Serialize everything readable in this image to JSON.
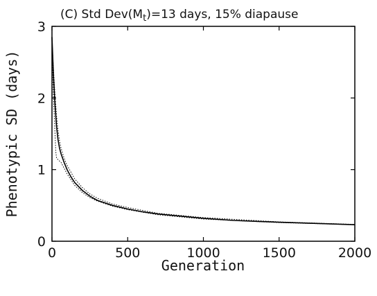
{
  "chart_data": {
    "type": "line",
    "title": "(C)   Std Dev(M",
    "title_subscript": "t",
    "title_rest": ")=13 days, 15% diapause",
    "xlabel": "Generation",
    "ylabel": "Phenotypic SD (days)",
    "xlim": [
      0,
      2000
    ],
    "ylim": [
      0,
      3
    ],
    "xticks": [
      0,
      500,
      1000,
      1500,
      2000
    ],
    "yticks": [
      0,
      1,
      2,
      3
    ],
    "xtick_labels": [
      "0",
      "500",
      "1000",
      "1500",
      "2000"
    ],
    "ytick_labels": [
      "0",
      "1",
      "2",
      "3"
    ],
    "grid": false,
    "series": [
      {
        "style": "solid",
        "color": "#000000",
        "x": [
          0,
          10,
          20,
          30,
          40,
          50,
          60,
          80,
          100,
          125,
          150,
          200,
          250,
          300,
          400,
          500,
          600,
          700,
          800,
          1000,
          1200,
          1500,
          1800,
          2000
        ],
        "y": [
          2.85,
          2.3,
          1.9,
          1.6,
          1.42,
          1.3,
          1.22,
          1.1,
          1.0,
          0.9,
          0.82,
          0.71,
          0.63,
          0.57,
          0.5,
          0.45,
          0.41,
          0.38,
          0.36,
          0.32,
          0.29,
          0.265,
          0.245,
          0.23
        ]
      },
      {
        "style": "dotted",
        "color": "#000000",
        "x": [
          0,
          10,
          20,
          25,
          30,
          40,
          50,
          60,
          80,
          100,
          150,
          200,
          250,
          300,
          400,
          500,
          700,
          1000,
          1500,
          2000
        ],
        "y": [
          2.7,
          2.0,
          1.5,
          1.25,
          1.16,
          1.14,
          1.12,
          1.1,
          1.02,
          0.94,
          0.78,
          0.68,
          0.61,
          0.56,
          0.49,
          0.44,
          0.37,
          0.31,
          0.26,
          0.23
        ]
      },
      {
        "style": "dotted",
        "color": "#000000",
        "x": [
          0,
          10,
          20,
          30,
          40,
          50,
          60,
          80,
          100,
          150,
          200,
          250,
          300,
          400,
          500,
          700,
          1000,
          1500,
          2000
        ],
        "y": [
          2.8,
          2.4,
          2.05,
          1.75,
          1.55,
          1.4,
          1.3,
          1.16,
          1.06,
          0.87,
          0.75,
          0.66,
          0.6,
          0.52,
          0.47,
          0.39,
          0.33,
          0.27,
          0.235
        ]
      }
    ]
  }
}
